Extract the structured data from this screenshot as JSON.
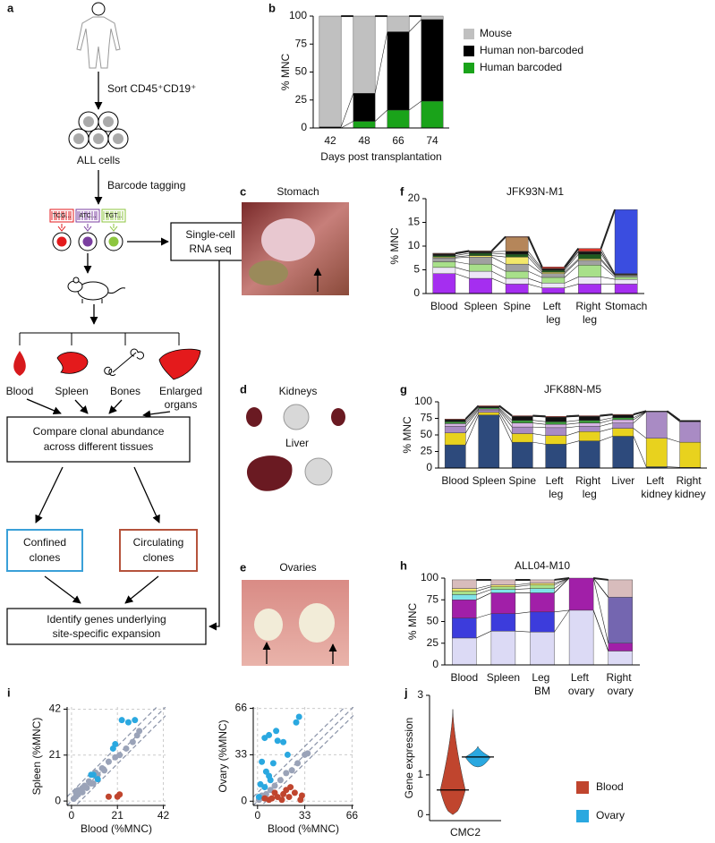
{
  "diagram": {
    "panel_label": "a",
    "sort": "Sort CD45⁺CD19⁺",
    "cells": "ALL cells",
    "tagging": "Barcode tagging",
    "barcodes": [
      "TCG...",
      "ATC...",
      "TGT..."
    ],
    "rnaseq": [
      "Single-cell",
      "RNA seq"
    ],
    "tissues": [
      "Blood",
      "Spleen",
      "Bones"
    ],
    "organs": [
      "Enlarged",
      "organs"
    ],
    "compare": [
      "Compare clonal abundance",
      "across different tissues"
    ],
    "confined": [
      "Confined",
      "clones"
    ],
    "circulating": [
      "Circulating",
      "clones"
    ],
    "identify": [
      "Identify genes underlying",
      "site-specific expansion"
    ]
  },
  "photos": [
    {
      "panel_label": "c",
      "labels": [
        "Stomach"
      ]
    },
    {
      "panel_label": "d",
      "labels": [
        "Kidneys",
        "Liver"
      ]
    },
    {
      "panel_label": "e",
      "labels": [
        "Ovaries"
      ]
    }
  ],
  "chart_data": [
    {
      "type": "stacked_bar",
      "panel_label": "b",
      "ylabel": "% MNC",
      "xlabel": "Days post transplantation",
      "categories": [
        "42",
        "48",
        "66",
        "74"
      ],
      "ylim": [
        0,
        100
      ],
      "yticks": [
        0,
        25,
        50,
        75,
        100
      ],
      "legend": "right",
      "series": [
        {
          "name": "Human barcoded",
          "color": "#1aa31a",
          "values": [
            0,
            6,
            16,
            24
          ]
        },
        {
          "name": "Human non-barcoded",
          "color": "#000000",
          "values": [
            1,
            25,
            70,
            73
          ]
        },
        {
          "name": "Mouse",
          "color": "#c0c0c0",
          "values": [
            99,
            69,
            14,
            3
          ]
        }
      ]
    },
    {
      "type": "stacked_bar",
      "panel_label": "f",
      "title": "JFK93N-M1",
      "ylabel": "% MNC",
      "categories": [
        "Blood",
        "Spleen",
        "Spine",
        "Left leg",
        "Right leg",
        "Stomach"
      ],
      "ylim": [
        0,
        20
      ],
      "yticks": [
        0,
        5,
        10,
        15,
        20
      ],
      "series": [
        {
          "color": "#a52ef0",
          "values": [
            4.2,
            3.2,
            2,
            1.2,
            2,
            2
          ]
        },
        {
          "color": "#ece6f6",
          "values": [
            1.3,
            1.5,
            1.2,
            1,
            1.5,
            1
          ]
        },
        {
          "color": "#a8e08a",
          "values": [
            1.2,
            1.5,
            1.5,
            1.2,
            2.5,
            0.5
          ]
        },
        {
          "color": "#a0a0a0",
          "values": [
            0.8,
            1.5,
            1.5,
            0.8,
            1,
            0.3
          ]
        },
        {
          "color": "#f3e86a",
          "values": [
            0.2,
            0.3,
            1.5,
            0.3,
            0.3,
            0.1
          ]
        },
        {
          "color": "#1f5a1f",
          "values": [
            0.3,
            0.5,
            0.6,
            0.4,
            1,
            0.1
          ]
        },
        {
          "color": "#111111",
          "values": [
            0.3,
            0.3,
            0.6,
            0.3,
            0.5,
            0.1
          ]
        },
        {
          "color": "#b5865a",
          "values": [
            0.1,
            0.1,
            3,
            0.1,
            0.1,
            0
          ]
        },
        {
          "color": "#d9352a",
          "values": [
            0.1,
            0.1,
            0.1,
            0.3,
            0.6,
            0.1
          ]
        },
        {
          "color": "#3a4de0",
          "values": [
            0,
            0,
            0,
            0,
            0,
            13.5
          ]
        }
      ]
    },
    {
      "type": "stacked_bar",
      "panel_label": "g",
      "title": "JFK88N-M5",
      "ylabel": "% MNC",
      "categories": [
        "Blood",
        "Spleen",
        "Spine",
        "Left leg",
        "Right leg",
        "Liver",
        "Left kidney",
        "Right kidney"
      ],
      "ylim": [
        0,
        100
      ],
      "yticks": [
        0,
        25,
        50,
        75,
        100
      ],
      "series": [
        {
          "color": "#2d4a7c",
          "values": [
            35,
            80,
            39,
            36,
            41,
            48,
            2,
            1
          ]
        },
        {
          "color": "#e8d21e",
          "values": [
            18,
            4,
            13,
            13,
            14,
            12,
            43,
            38
          ]
        },
        {
          "color": "#a98bc4",
          "values": [
            10,
            3,
            10,
            12,
            8,
            8,
            40,
            31
          ]
        },
        {
          "color": "#d6b3e3",
          "values": [
            4,
            2,
            6,
            5,
            5,
            5,
            0,
            0
          ]
        },
        {
          "color": "#3d9a3d",
          "values": [
            3,
            2,
            4,
            4,
            4,
            3,
            0,
            0
          ]
        },
        {
          "color": "#111111",
          "values": [
            3,
            2,
            6,
            7,
            6,
            4,
            1,
            2
          ]
        },
        {
          "color": "#d9352a",
          "values": [
            1,
            1,
            1,
            1,
            1,
            1,
            0,
            0
          ]
        }
      ]
    },
    {
      "type": "stacked_bar",
      "panel_label": "h",
      "title": "ALL04-M10",
      "ylabel": "% MNC",
      "categories": [
        "Blood",
        "Spleen",
        "Leg BM",
        "Left ovary",
        "Right ovary"
      ],
      "ylim": [
        0,
        100
      ],
      "yticks": [
        0,
        25,
        50,
        75,
        100
      ],
      "series": [
        {
          "color": "#dcdaf5",
          "values": [
            31,
            39,
            38,
            63,
            16
          ]
        },
        {
          "color": "#3c3cdc",
          "values": [
            23,
            20,
            23,
            0,
            0
          ]
        },
        {
          "color": "#a11fa8",
          "values": [
            21,
            24,
            22,
            37,
            9
          ]
        },
        {
          "color": "#7466b0",
          "values": [
            0,
            0,
            0,
            0,
            53
          ]
        },
        {
          "color": "#7fe3e8",
          "values": [
            6,
            4,
            5,
            0,
            0
          ]
        },
        {
          "color": "#a8e08a",
          "values": [
            4,
            3,
            4,
            0,
            0
          ]
        },
        {
          "color": "#f3e86a",
          "values": [
            3,
            2,
            2,
            0,
            0
          ]
        },
        {
          "color": "#d8bcbc",
          "values": [
            10,
            6,
            4,
            0,
            20
          ]
        }
      ]
    },
    {
      "type": "scatter",
      "panel_label": "i",
      "xlabel": "Blood (%MNC)",
      "ylabel": "Spleen (%MNC)",
      "xlim": [
        -2,
        43
      ],
      "ylim": [
        -2,
        43
      ],
      "xticks": [
        0,
        21,
        42
      ],
      "yticks": [
        0,
        21,
        42
      ],
      "grid": true,
      "diagonals": [
        -4,
        0,
        4
      ],
      "series": [
        {
          "color": "#9aa3b8",
          "x": [
            1,
            2,
            3,
            4,
            5,
            6,
            7,
            8,
            9,
            10,
            12,
            14,
            17,
            20,
            22,
            25,
            28,
            30,
            31,
            3,
            2,
            5,
            11,
            15
          ],
          "values": [
            1,
            2,
            3,
            5,
            4,
            7,
            6,
            9,
            8,
            8,
            12,
            15,
            18,
            20,
            21,
            24,
            27,
            30,
            32,
            5,
            4,
            6,
            13,
            14
          ]
        },
        {
          "color": "#2aa8e0",
          "x": [
            23,
            26,
            29,
            20,
            19,
            10,
            12,
            9
          ],
          "values": [
            37,
            36,
            37,
            26,
            24,
            12,
            10,
            12
          ]
        },
        {
          "color": "#c0452e",
          "x": [
            17,
            21,
            22
          ],
          "values": [
            2,
            2,
            3
          ]
        }
      ]
    },
    {
      "type": "scatter",
      "xlabel": "Blood (%MNC)",
      "ylabel": "Ovary (%MNC)",
      "xlim": [
        -3,
        67
      ],
      "ylim": [
        -3,
        67
      ],
      "xticks": [
        0,
        33,
        66
      ],
      "yticks": [
        0,
        33,
        66
      ],
      "grid": true,
      "diagonals": [
        -6,
        0,
        6
      ],
      "series": [
        {
          "color": "#9aa3b8",
          "x": [
            2,
            4,
            6,
            9,
            12,
            16,
            20,
            24,
            28,
            33,
            35,
            1,
            3
          ],
          "values": [
            2,
            3,
            5,
            8,
            11,
            15,
            20,
            22,
            27,
            33,
            34,
            1,
            4
          ]
        },
        {
          "color": "#2aa8e0",
          "x": [
            5,
            8,
            13,
            18,
            21,
            3,
            6,
            8,
            2,
            5,
            11,
            27,
            29,
            14,
            1,
            9
          ],
          "values": [
            45,
            47,
            50,
            42,
            33,
            28,
            21,
            18,
            12,
            10,
            27,
            56,
            60,
            43,
            3,
            15
          ]
        },
        {
          "color": "#c0452e",
          "x": [
            8,
            14,
            18,
            22,
            26,
            23,
            17,
            30,
            12,
            20,
            31,
            5,
            10
          ],
          "values": [
            1,
            3,
            5,
            3,
            6,
            10,
            1,
            1,
            6,
            8,
            4,
            2,
            2
          ]
        }
      ]
    },
    {
      "type": "violin",
      "panel_label": "j",
      "ylabel": "Gene expression",
      "categories": [
        "CMC2"
      ],
      "ylim": [
        -0.15,
        3
      ],
      "yticks": [
        0,
        1,
        3
      ],
      "legend": "lower right",
      "series": [
        {
          "name": "Blood",
          "color": "#c0452e",
          "min": [
            0
          ],
          "median": [
            0.62
          ],
          "max": [
            2.65
          ]
        },
        {
          "name": "Ovary",
          "color": "#2aa8e0",
          "min": [
            1.2
          ],
          "median": [
            1.45
          ],
          "max": [
            1.72
          ]
        }
      ]
    }
  ]
}
